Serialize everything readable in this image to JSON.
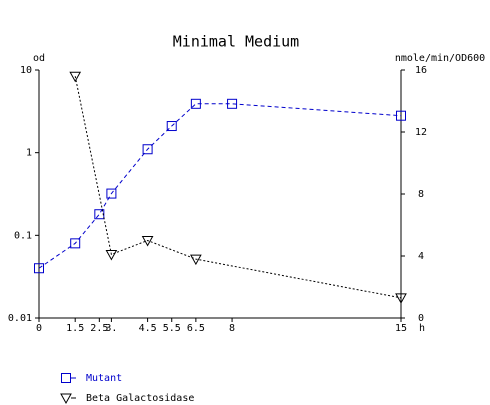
{
  "chart_data": {
    "type": "line",
    "title": "Minimal Medium",
    "ylabel": "od",
    "y2label": "nmole/min/OD600",
    "xlabel": "h",
    "xlim": [
      0,
      15
    ],
    "xticks": [
      0,
      1.5,
      2.5,
      {
        "value": 3,
        "label": "3."
      },
      4.5,
      5.5,
      6.5,
      8,
      15
    ],
    "ylim": [
      0.01,
      10
    ],
    "yscale": "log",
    "yticks": [
      10,
      1,
      0.1,
      0.01
    ],
    "y2lim": [
      0,
      16
    ],
    "y2ticks": [
      0,
      4,
      8,
      12,
      16
    ],
    "legend": "bottom-left",
    "series": [
      {
        "name": "Mutant",
        "color": "#0000cc",
        "marker": "square",
        "axis": "y",
        "x": [
          0,
          1.5,
          2.5,
          3,
          4.5,
          5.5,
          6.5,
          8,
          15
        ],
        "values": [
          0.04,
          0.08,
          0.18,
          0.32,
          1.1,
          2.1,
          3.9,
          3.9,
          2.8
        ]
      },
      {
        "name": "Beta Galactosidase",
        "color": "#000000",
        "marker": "triangle-down",
        "axis": "y2",
        "x": [
          1.5,
          3,
          4.5,
          6.5,
          15
        ],
        "values": [
          15.6,
          4.1,
          5.0,
          3.8,
          1.3
        ]
      }
    ]
  }
}
